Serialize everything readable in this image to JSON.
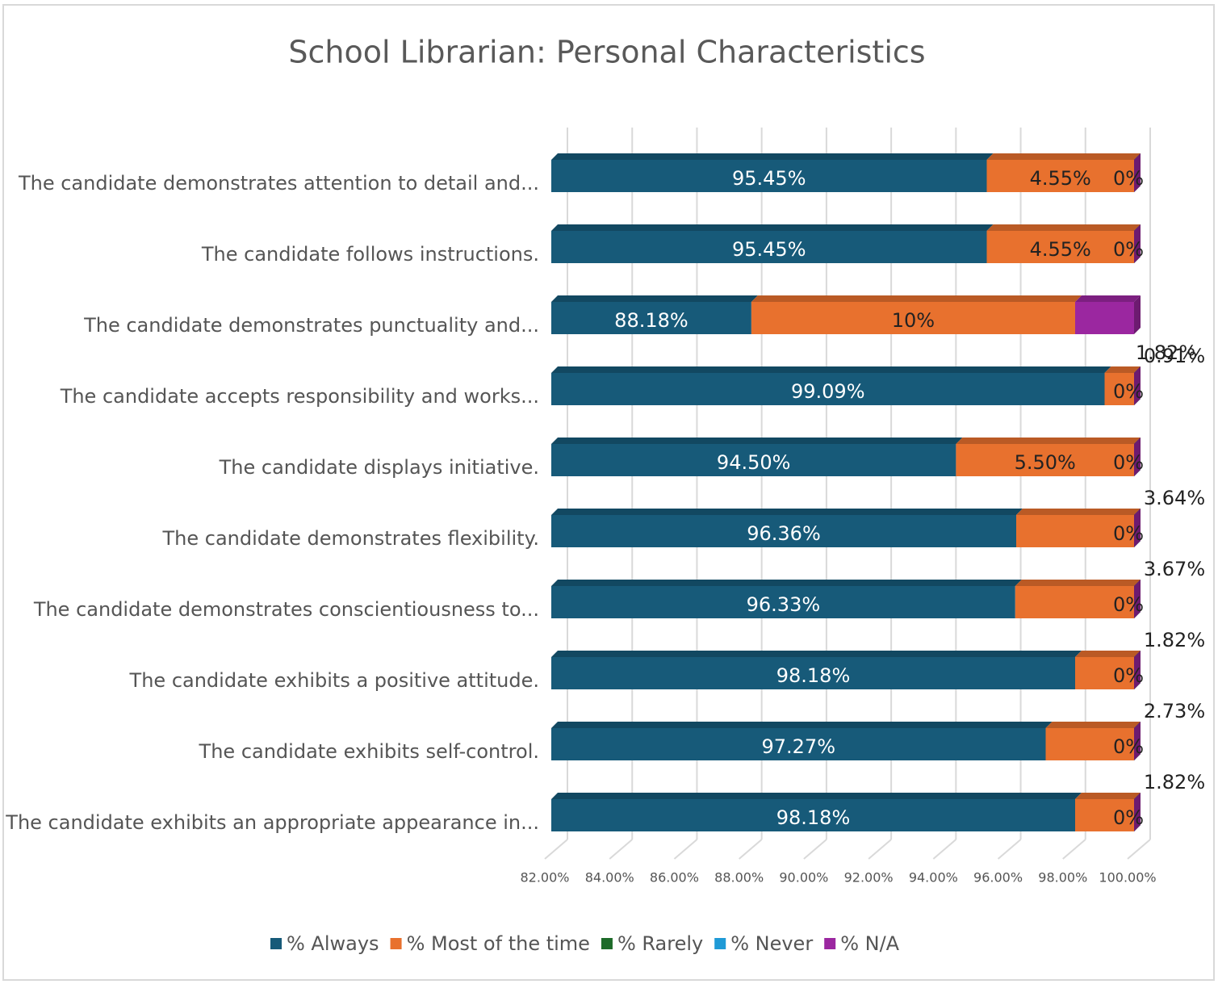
{
  "chart_data": {
    "type": "stacked_bar_3d",
    "orientation": "horizontal",
    "title": "School Librarian: Personal Characteristics",
    "categories": [
      "The candidate demonstrates attention to detail and...",
      "The candidate follows instructions.",
      "The candidate demonstrates punctuality and...",
      "The candidate accepts responsibility and works...",
      "The candidate displays initiative.",
      "The candidate demonstrates flexibility.",
      "The candidate demonstrates conscientiousness to...",
      "The candidate exhibits a positive attitude.",
      "The candidate exhibits self-control.",
      "The candidate exhibits an appropriate appearance in..."
    ],
    "series": [
      {
        "name": "% Always",
        "color": "#175a79",
        "values": [
          95.45,
          95.45,
          88.18,
          99.09,
          94.5,
          96.36,
          96.33,
          98.18,
          97.27,
          98.18
        ],
        "value_labels": [
          "95.45%",
          "95.45%",
          "88.18%",
          "99.09%",
          "94.50%",
          "96.36%",
          "96.33%",
          "98.18%",
          "97.27%",
          "98.18%"
        ]
      },
      {
        "name": "% Most of the time",
        "color": "#e8712e",
        "values": [
          4.55,
          4.55,
          10,
          0.91,
          5.5,
          3.64,
          3.67,
          1.82,
          2.73,
          1.82
        ],
        "value_labels": [
          "4.55%",
          "4.55%",
          "10%",
          "0.91%",
          "5.50%",
          "3.64%",
          "3.67%",
          "1.82%",
          "2.73%",
          "1.82%"
        ]
      },
      {
        "name": "% Rarely",
        "color": "#1e6b2a",
        "values": [
          0,
          0,
          0,
          0,
          0,
          0,
          0,
          0,
          0,
          0
        ]
      },
      {
        "name": "% Never",
        "color": "#1f9ad6",
        "values": [
          0,
          0,
          0,
          0,
          0,
          0,
          0,
          0,
          0,
          0
        ]
      },
      {
        "name": "% N/A",
        "color": "#9b27a0",
        "values": [
          0,
          0,
          1.82,
          0,
          0,
          0,
          0,
          0,
          0,
          0
        ],
        "value_labels": [
          "0%",
          "0%",
          "1.82%",
          "0%",
          "0%",
          "0%",
          "0%",
          "0%",
          "0%",
          "0%"
        ]
      }
    ],
    "xlim": [
      82,
      100
    ],
    "xticks": [
      {
        "value": 82,
        "label": "82.00%"
      },
      {
        "value": 84,
        "label": "84.00%"
      },
      {
        "value": 86,
        "label": "86.00%"
      },
      {
        "value": 88,
        "label": "88.00%"
      },
      {
        "value": 90,
        "label": "90.00%"
      },
      {
        "value": 92,
        "label": "92.00%"
      },
      {
        "value": 94,
        "label": "94.00%"
      },
      {
        "value": 96,
        "label": "96.00%"
      },
      {
        "value": 98,
        "label": "98.00%"
      },
      {
        "value": 100,
        "label": "100.00%"
      }
    ],
    "grid": true,
    "legend": "bottom"
  }
}
